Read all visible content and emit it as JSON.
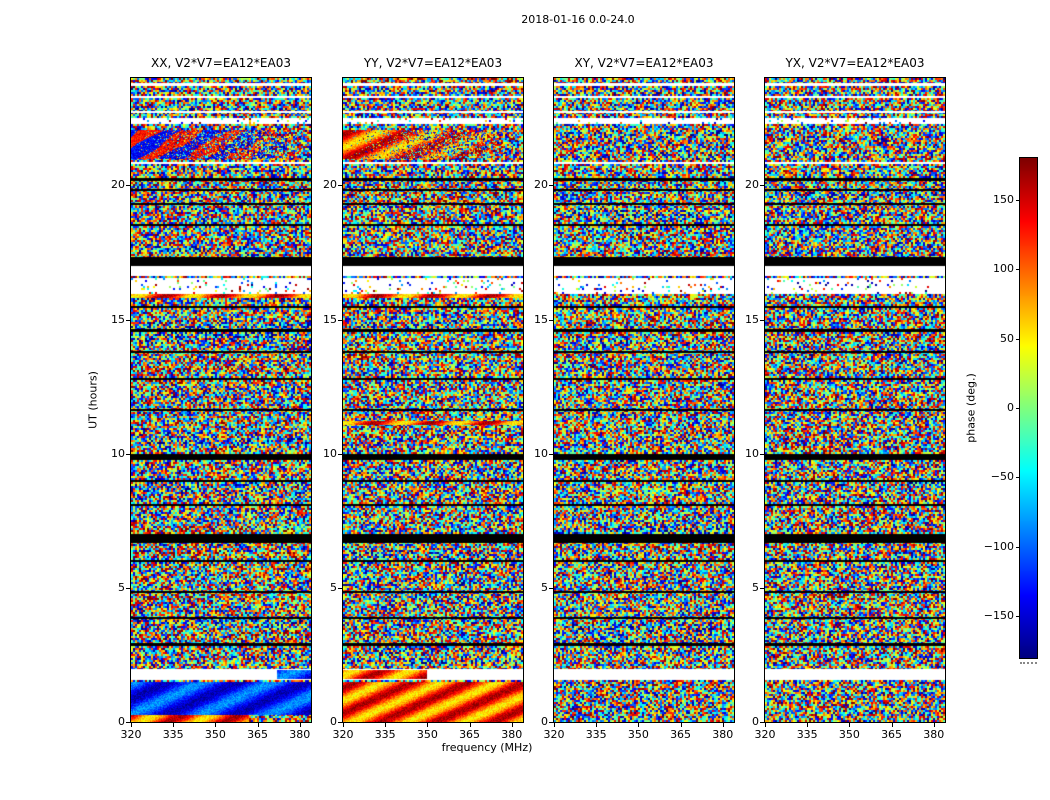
{
  "figure": {
    "title": "2018-01-16 0.0-24.0"
  },
  "chart_data": {
    "type": "heatmap",
    "title": "2018-01-16 0.0-24.0",
    "xlabel": "frequency (MHz)",
    "ylabel": "UT (hours)",
    "colormap": "jet",
    "x_range_mhz": [
      320,
      384
    ],
    "x_ticks": [
      "320",
      "335",
      "350",
      "365",
      "380"
    ],
    "y_range_hours": [
      0,
      24
    ],
    "y_ticks": [
      "0",
      "5",
      "10",
      "15",
      "20"
    ],
    "colorbar": {
      "label": "phase (deg.)",
      "ticks": [
        "150",
        "100",
        "50",
        "0",
        "−50",
        "−100",
        "−150"
      ],
      "tick_values": [
        150,
        100,
        50,
        0,
        -50,
        -100,
        -150
      ],
      "range": [
        -180,
        180
      ]
    },
    "panels": [
      {
        "id": "xx",
        "title": "XX, V2*V7=EA12*EA03",
        "seed": 101,
        "features": [
          {
            "ut": [
              21.0,
              22.08
            ],
            "freq": [
              320,
              384
            ],
            "palette": "coolwarm",
            "fade": "right"
          },
          {
            "ut": [
              15.8,
              15.96
            ],
            "freq": [
              320,
              384
            ],
            "palette": "warm"
          },
          {
            "ut": [
              0.25,
              1.5
            ],
            "freq": [
              320,
              384
            ],
            "palette": "cool"
          },
          {
            "ut": [
              0.0,
              0.25
            ],
            "freq": [
              320,
              362
            ],
            "palette": "warm"
          },
          {
            "ut": [
              1.6,
              1.94
            ],
            "freq": [
              372,
              384
            ],
            "palette": "cool",
            "after_stripes": true
          }
        ]
      },
      {
        "id": "yy",
        "title": "YY, V2*V7=EA12*EA03",
        "seed": 202,
        "features": [
          {
            "ut": [
              21.0,
              22.08
            ],
            "freq": [
              320,
              384
            ],
            "palette": "warm",
            "fade": "right"
          },
          {
            "ut": [
              15.8,
              15.96
            ],
            "freq": [
              320,
              384
            ],
            "palette": "warm"
          },
          {
            "ut": [
              11.05,
              11.2
            ],
            "freq": [
              320,
              384
            ],
            "palette": "warm"
          },
          {
            "ut": [
              0.0,
              1.5
            ],
            "freq": [
              320,
              384
            ],
            "palette": "warm"
          },
          {
            "ut": [
              1.6,
              1.94
            ],
            "freq": [
              320,
              350
            ],
            "palette": "warm",
            "after_stripes": true
          }
        ]
      },
      {
        "id": "xy",
        "title": "XY, V2*V7=EA12*EA03",
        "seed": 303,
        "features": []
      },
      {
        "id": "yx",
        "title": "YX, V2*V7=EA12*EA03",
        "seed": 404,
        "features": []
      }
    ],
    "time_stripes": [
      {
        "ut": [
          23.72,
          23.8
        ],
        "type": "white"
      },
      {
        "ut": [
          23.25,
          23.33
        ],
        "type": "white"
      },
      {
        "ut": [
          22.68,
          22.76
        ],
        "type": "white"
      },
      {
        "ut": [
          22.3,
          22.52
        ],
        "type": "sparse"
      },
      {
        "ut": [
          20.78,
          20.86
        ],
        "type": "white"
      },
      {
        "ut": [
          20.18,
          20.26
        ],
        "type": "black"
      },
      {
        "ut": [
          19.78,
          19.86
        ],
        "type": "black"
      },
      {
        "ut": [
          19.28,
          19.36
        ],
        "type": "black"
      },
      {
        "ut": [
          18.48,
          18.56
        ],
        "type": "black"
      },
      {
        "ut": [
          17.0,
          17.32
        ],
        "type": "black"
      },
      {
        "ut": [
          16.62,
          17.0
        ],
        "type": "white"
      },
      {
        "ut": [
          16.0,
          16.58
        ],
        "type": "sparse"
      },
      {
        "ut": [
          15.42,
          15.5
        ],
        "type": "black"
      },
      {
        "ut": [
          14.55,
          14.63
        ],
        "type": "black"
      },
      {
        "ut": [
          13.75,
          13.83
        ],
        "type": "black"
      },
      {
        "ut": [
          12.75,
          12.83
        ],
        "type": "black"
      },
      {
        "ut": [
          11.6,
          11.68
        ],
        "type": "black"
      },
      {
        "ut": [
          9.75,
          9.98
        ],
        "type": "black"
      },
      {
        "ut": [
          8.95,
          9.03
        ],
        "type": "black"
      },
      {
        "ut": [
          8.05,
          8.13
        ],
        "type": "black"
      },
      {
        "ut": [
          6.68,
          7.0
        ],
        "type": "black"
      },
      {
        "ut": [
          5.95,
          6.03
        ],
        "type": "black"
      },
      {
        "ut": [
          4.8,
          4.88
        ],
        "type": "black"
      },
      {
        "ut": [
          3.85,
          3.93
        ],
        "type": "black"
      },
      {
        "ut": [
          2.85,
          2.93
        ],
        "type": "black"
      },
      {
        "ut": [
          1.55,
          1.98
        ],
        "type": "white"
      }
    ],
    "content_note": "Four 24-hour by 64-MHz waterfalls of interferometric visibility phase (jet colormap, ±180°); phase is noise-like with flagged time ranges shown as black or white horizontal stripes, plus coherent warm/cool phase bands near UT 0-1.5 and UT 21-22 in the XX and YY panels."
  }
}
